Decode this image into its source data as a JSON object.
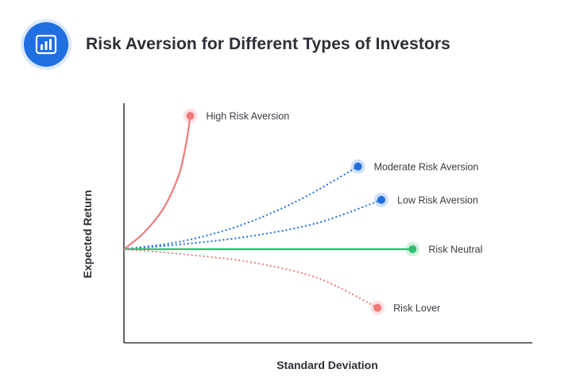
{
  "header": {
    "title": "Risk Aversion for Different Types of Investors",
    "icon": "bar-chart-icon"
  },
  "chart_data": {
    "type": "line",
    "title": "Risk Aversion for Different Types of Investors",
    "xlabel": "Standard Deviation",
    "ylabel": "Expected Return",
    "grid": false,
    "legend": "end-of-line labels",
    "series": [
      {
        "name": "High Risk Aversion",
        "color": "#ee7b7b",
        "style": "solid",
        "points": [
          [
            0,
            0
          ],
          [
            0.05,
            0.12
          ],
          [
            0.1,
            0.3
          ],
          [
            0.14,
            0.55
          ],
          [
            0.16,
            0.8
          ],
          [
            0.17,
            1.0
          ]
        ]
      },
      {
        "name": "Moderate Risk Aversion",
        "color": "#1f6fe0",
        "style": "dotted",
        "points": [
          [
            0,
            0
          ],
          [
            0.15,
            0.06
          ],
          [
            0.3,
            0.18
          ],
          [
            0.45,
            0.37
          ],
          [
            0.6,
            0.62
          ]
        ]
      },
      {
        "name": "Low Risk Aversion",
        "color": "#1f6fe0",
        "style": "dotted",
        "points": [
          [
            0,
            0
          ],
          [
            0.16,
            0.04
          ],
          [
            0.33,
            0.1
          ],
          [
            0.5,
            0.2
          ],
          [
            0.66,
            0.37
          ]
        ]
      },
      {
        "name": "Risk Neutral",
        "color": "#2fbf71",
        "style": "solid",
        "points": [
          [
            0,
            0
          ],
          [
            0.74,
            0
          ]
        ]
      },
      {
        "name": "Risk Lover",
        "color": "#ee7b7b",
        "style": "dotted",
        "points": [
          [
            0,
            0
          ],
          [
            0.16,
            -0.04
          ],
          [
            0.33,
            -0.1
          ],
          [
            0.5,
            -0.22
          ],
          [
            0.65,
            -0.44
          ]
        ]
      }
    ]
  }
}
